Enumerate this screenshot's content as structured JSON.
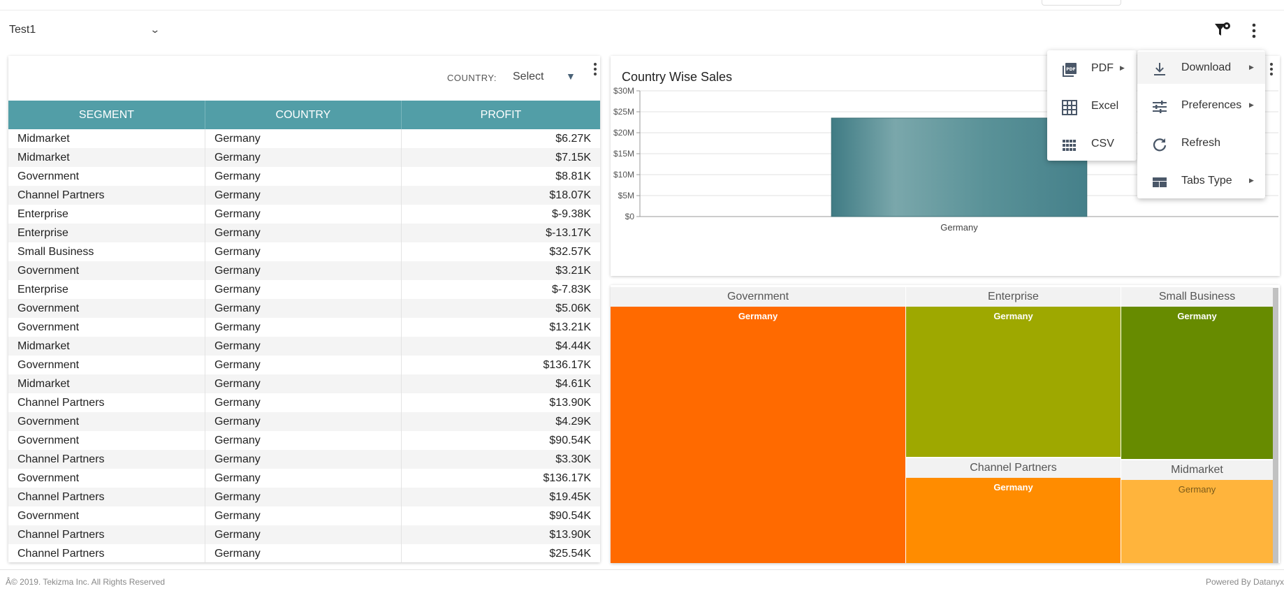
{
  "header": {
    "dashboard_name": "Test1"
  },
  "table_widget": {
    "filter_label": "COUNTRY:",
    "filter_value": "Select",
    "columns": [
      "SEGMENT",
      "COUNTRY",
      "PROFIT"
    ],
    "rows": [
      [
        "Midmarket",
        "Germany",
        "$6.27K"
      ],
      [
        "Midmarket",
        "Germany",
        "$7.15K"
      ],
      [
        "Government",
        "Germany",
        "$8.81K"
      ],
      [
        "Channel Partners",
        "Germany",
        "$18.07K"
      ],
      [
        "Enterprise",
        "Germany",
        "$-9.38K"
      ],
      [
        "Enterprise",
        "Germany",
        "$-13.17K"
      ],
      [
        "Small Business",
        "Germany",
        "$32.57K"
      ],
      [
        "Government",
        "Germany",
        "$3.21K"
      ],
      [
        "Enterprise",
        "Germany",
        "$-7.83K"
      ],
      [
        "Government",
        "Germany",
        "$5.06K"
      ],
      [
        "Government",
        "Germany",
        "$13.21K"
      ],
      [
        "Midmarket",
        "Germany",
        "$4.44K"
      ],
      [
        "Government",
        "Germany",
        "$136.17K"
      ],
      [
        "Midmarket",
        "Germany",
        "$4.61K"
      ],
      [
        "Channel Partners",
        "Germany",
        "$13.90K"
      ],
      [
        "Government",
        "Germany",
        "$4.29K"
      ],
      [
        "Government",
        "Germany",
        "$90.54K"
      ],
      [
        "Channel Partners",
        "Germany",
        "$3.30K"
      ],
      [
        "Government",
        "Germany",
        "$136.17K"
      ],
      [
        "Channel Partners",
        "Germany",
        "$19.45K"
      ],
      [
        "Government",
        "Germany",
        "$90.54K"
      ],
      [
        "Channel Partners",
        "Germany",
        "$13.90K"
      ],
      [
        "Channel Partners",
        "Germany",
        "$25.54K"
      ]
    ]
  },
  "chart_data": {
    "type": "bar",
    "title": "Country Wise Sales",
    "categories": [
      "Germany"
    ],
    "values": [
      23.5
    ],
    "y_tick_labels": [
      "$0",
      "$5M",
      "$10M",
      "$15M",
      "$20M",
      "$25M",
      "$30M"
    ],
    "ylim": [
      0,
      30
    ],
    "grid": true,
    "bar_color": "#4c8a92"
  },
  "treemap": {
    "groups": [
      {
        "name": "Government",
        "cells": [
          {
            "label": "Germany",
            "color": "#ff6a00"
          }
        ]
      },
      {
        "name": "Enterprise",
        "cells": [
          {
            "label": "Germany",
            "color": "#9ea800"
          }
        ]
      },
      {
        "name": "Small Business",
        "cells": [
          {
            "label": "Germany",
            "color": "#678b00"
          }
        ]
      },
      {
        "name": "Channel Partners",
        "cells": [
          {
            "label": "Germany",
            "color": "#ff8c00"
          }
        ]
      },
      {
        "name": "Midmarket",
        "cells": [
          {
            "label": "Germany",
            "color": "#ffb43c"
          }
        ]
      }
    ]
  },
  "menu": {
    "main_items": [
      {
        "label": "Download",
        "icon": "download-icon",
        "has_submenu": true
      },
      {
        "label": "Preferences",
        "icon": "sliders-icon",
        "has_submenu": true
      },
      {
        "label": "Refresh",
        "icon": "refresh-icon",
        "has_submenu": false
      },
      {
        "label": "Tabs Type",
        "icon": "tabs-icon",
        "has_submenu": true
      }
    ],
    "download_items": [
      {
        "label": "PDF",
        "icon": "pdf-icon",
        "has_submenu": true
      },
      {
        "label": "Excel",
        "icon": "grid-icon",
        "has_submenu": false
      },
      {
        "label": "CSV",
        "icon": "csv-icon",
        "has_submenu": false
      }
    ]
  },
  "footer": {
    "copyright": "Â© 2019. Tekizma Inc. All Rights Reserved",
    "powered_by": "Powered By Datanyx"
  }
}
